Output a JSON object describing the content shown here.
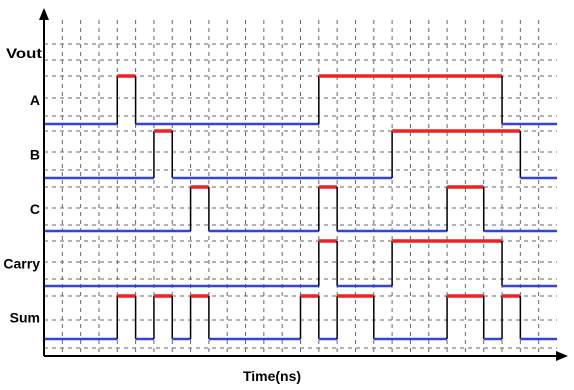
{
  "chart_data": {
    "type": "line",
    "title": "",
    "xlabel": "Time(ns)",
    "ylabel": "Vout",
    "grid": true,
    "step": true,
    "xlim": [
      0,
      28
    ],
    "low_color": "#3344dd",
    "high_color": "#ee2222",
    "series": [
      {
        "name": "A",
        "transitions": [
          0,
          4,
          5,
          15,
          25,
          28
        ],
        "start_level": 0
      },
      {
        "name": "B",
        "transitions": [
          0,
          6,
          7,
          19,
          26,
          28
        ],
        "start_level": 0
      },
      {
        "name": "C",
        "transitions": [
          0,
          8,
          9,
          15,
          16,
          22,
          24,
          28
        ],
        "start_level": 0
      },
      {
        "name": "Carry",
        "transitions": [
          0,
          15,
          16,
          19,
          25,
          28
        ],
        "start_level": 0
      },
      {
        "name": "Sum",
        "transitions": [
          0,
          4,
          5,
          6,
          7,
          8,
          9,
          14,
          15,
          16,
          18,
          22,
          24,
          25,
          26,
          28
        ],
        "start_level": 0
      }
    ]
  }
}
